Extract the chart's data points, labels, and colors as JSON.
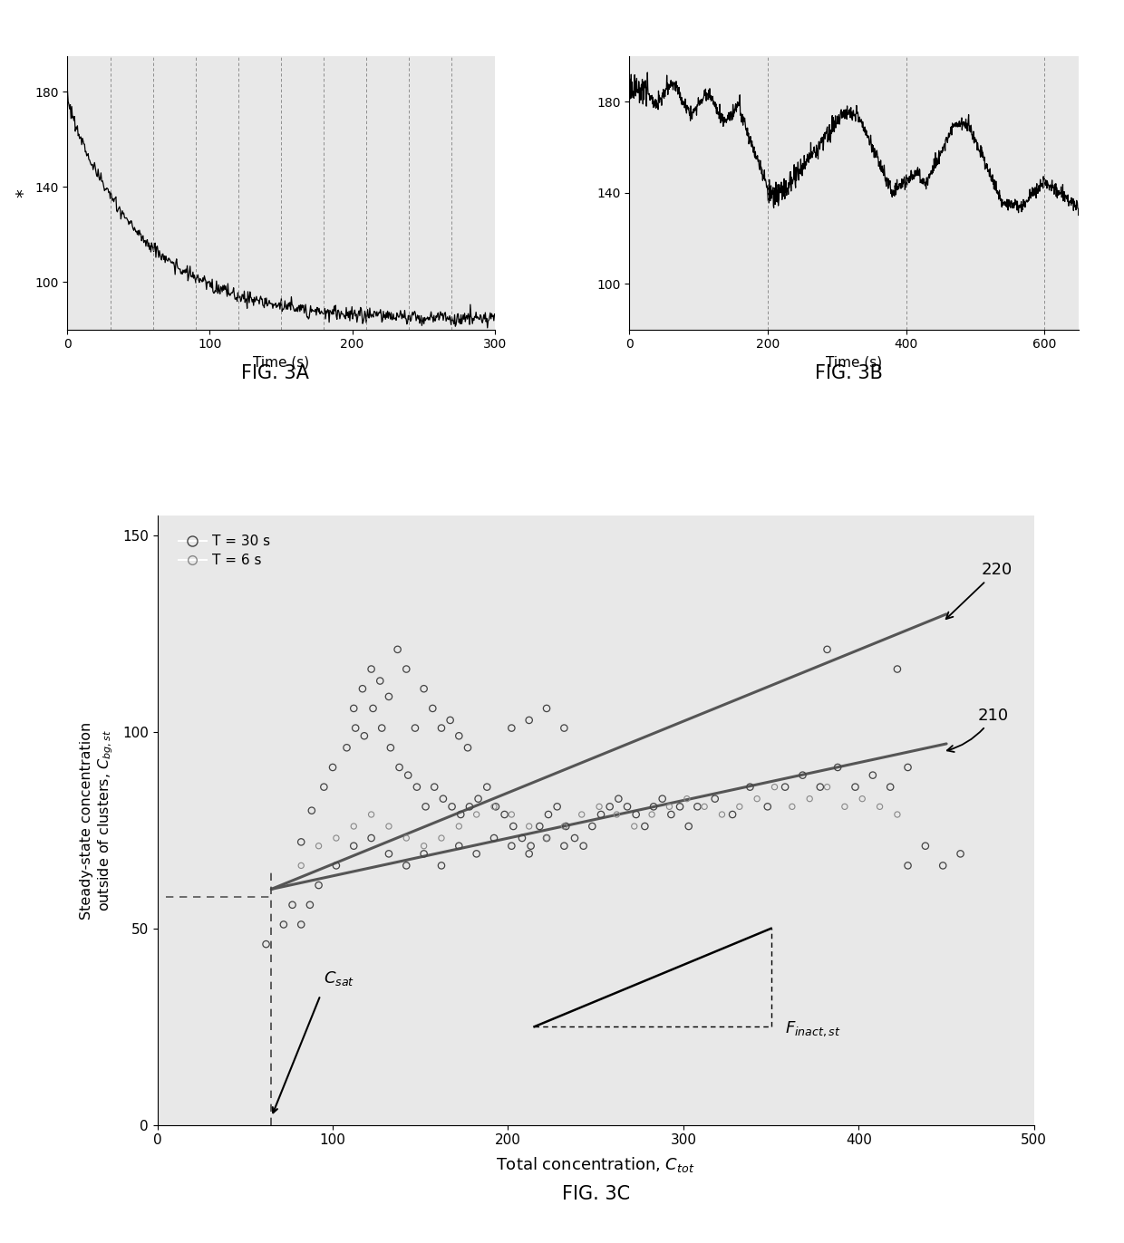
{
  "fig3a": {
    "xlabel": "Time (s)",
    "xlim": [
      0,
      300
    ],
    "ylim": [
      80,
      195
    ],
    "yticks": [
      100,
      140,
      180
    ],
    "xticks": [
      0,
      100,
      200,
      300
    ],
    "vlines": [
      30,
      60,
      90,
      120,
      150,
      180,
      210,
      240,
      270,
      300
    ]
  },
  "fig3b": {
    "xlabel": "Time (s)",
    "xlim": [
      0,
      650
    ],
    "ylim": [
      80,
      200
    ],
    "yticks": [
      100,
      140,
      180
    ],
    "xticks": [
      0,
      200,
      400,
      600
    ],
    "vlines": [
      200,
      400,
      600
    ]
  },
  "fig3c": {
    "xlabel": "Total concentration, $\\mathit{C}_{tot}$",
    "ylabel": "Steady-state concentration\noutside of clusters, $\\mathit{C}_{bg,st}$",
    "xlim": [
      0,
      500
    ],
    "ylim": [
      0,
      155
    ],
    "xticks": [
      0,
      100,
      200,
      300,
      400,
      500
    ],
    "yticks": [
      0,
      50,
      100,
      150
    ]
  },
  "scatter_t30": [
    [
      82,
      72
    ],
    [
      88,
      80
    ],
    [
      95,
      86
    ],
    [
      100,
      91
    ],
    [
      108,
      96
    ],
    [
      113,
      101
    ],
    [
      118,
      99
    ],
    [
      123,
      106
    ],
    [
      128,
      101
    ],
    [
      133,
      96
    ],
    [
      138,
      91
    ],
    [
      143,
      89
    ],
    [
      148,
      86
    ],
    [
      153,
      81
    ],
    [
      158,
      86
    ],
    [
      163,
      83
    ],
    [
      168,
      81
    ],
    [
      173,
      79
    ],
    [
      178,
      81
    ],
    [
      183,
      83
    ],
    [
      188,
      86
    ],
    [
      193,
      81
    ],
    [
      198,
      79
    ],
    [
      203,
      76
    ],
    [
      208,
      73
    ],
    [
      213,
      71
    ],
    [
      218,
      76
    ],
    [
      223,
      79
    ],
    [
      228,
      81
    ],
    [
      233,
      76
    ],
    [
      238,
      73
    ],
    [
      243,
      71
    ],
    [
      248,
      76
    ],
    [
      253,
      79
    ],
    [
      258,
      81
    ],
    [
      263,
      83
    ],
    [
      268,
      81
    ],
    [
      273,
      79
    ],
    [
      278,
      76
    ],
    [
      283,
      81
    ],
    [
      288,
      83
    ],
    [
      293,
      79
    ],
    [
      298,
      81
    ],
    [
      303,
      76
    ],
    [
      308,
      81
    ],
    [
      318,
      83
    ],
    [
      328,
      79
    ],
    [
      338,
      86
    ],
    [
      348,
      81
    ],
    [
      358,
      86
    ],
    [
      368,
      89
    ],
    [
      378,
      86
    ],
    [
      388,
      91
    ],
    [
      398,
      86
    ],
    [
      408,
      89
    ],
    [
      418,
      86
    ],
    [
      428,
      91
    ],
    [
      62,
      46
    ],
    [
      72,
      51
    ],
    [
      77,
      56
    ],
    [
      82,
      51
    ],
    [
      87,
      56
    ],
    [
      92,
      61
    ],
    [
      102,
      66
    ],
    [
      112,
      71
    ],
    [
      122,
      73
    ],
    [
      132,
      69
    ],
    [
      142,
      66
    ],
    [
      152,
      69
    ],
    [
      162,
      66
    ],
    [
      172,
      71
    ],
    [
      182,
      69
    ],
    [
      192,
      73
    ],
    [
      202,
      71
    ],
    [
      212,
      69
    ],
    [
      222,
      73
    ],
    [
      232,
      71
    ],
    [
      112,
      106
    ],
    [
      117,
      111
    ],
    [
      122,
      116
    ],
    [
      127,
      113
    ],
    [
      132,
      109
    ],
    [
      137,
      121
    ],
    [
      142,
      116
    ],
    [
      147,
      101
    ],
    [
      152,
      111
    ],
    [
      157,
      106
    ],
    [
      162,
      101
    ],
    [
      167,
      103
    ],
    [
      172,
      99
    ],
    [
      177,
      96
    ],
    [
      202,
      101
    ],
    [
      212,
      103
    ],
    [
      222,
      106
    ],
    [
      232,
      101
    ],
    [
      382,
      121
    ],
    [
      422,
      116
    ],
    [
      458,
      69
    ],
    [
      448,
      66
    ],
    [
      438,
      71
    ],
    [
      428,
      66
    ]
  ],
  "scatter_t6": [
    [
      82,
      66
    ],
    [
      92,
      71
    ],
    [
      102,
      73
    ],
    [
      112,
      76
    ],
    [
      122,
      79
    ],
    [
      132,
      76
    ],
    [
      142,
      73
    ],
    [
      152,
      71
    ],
    [
      162,
      73
    ],
    [
      172,
      76
    ],
    [
      182,
      79
    ],
    [
      192,
      81
    ],
    [
      202,
      79
    ],
    [
      212,
      76
    ],
    [
      222,
      73
    ],
    [
      232,
      76
    ],
    [
      242,
      79
    ],
    [
      252,
      81
    ],
    [
      262,
      79
    ],
    [
      272,
      76
    ],
    [
      282,
      79
    ],
    [
      292,
      81
    ],
    [
      302,
      83
    ],
    [
      312,
      81
    ],
    [
      322,
      79
    ],
    [
      332,
      81
    ],
    [
      342,
      83
    ],
    [
      352,
      86
    ],
    [
      362,
      81
    ],
    [
      372,
      83
    ],
    [
      382,
      86
    ],
    [
      392,
      81
    ],
    [
      402,
      83
    ],
    [
      412,
      81
    ],
    [
      422,
      79
    ]
  ],
  "bg_color": "#e8e8e8",
  "line_color": "#333333"
}
